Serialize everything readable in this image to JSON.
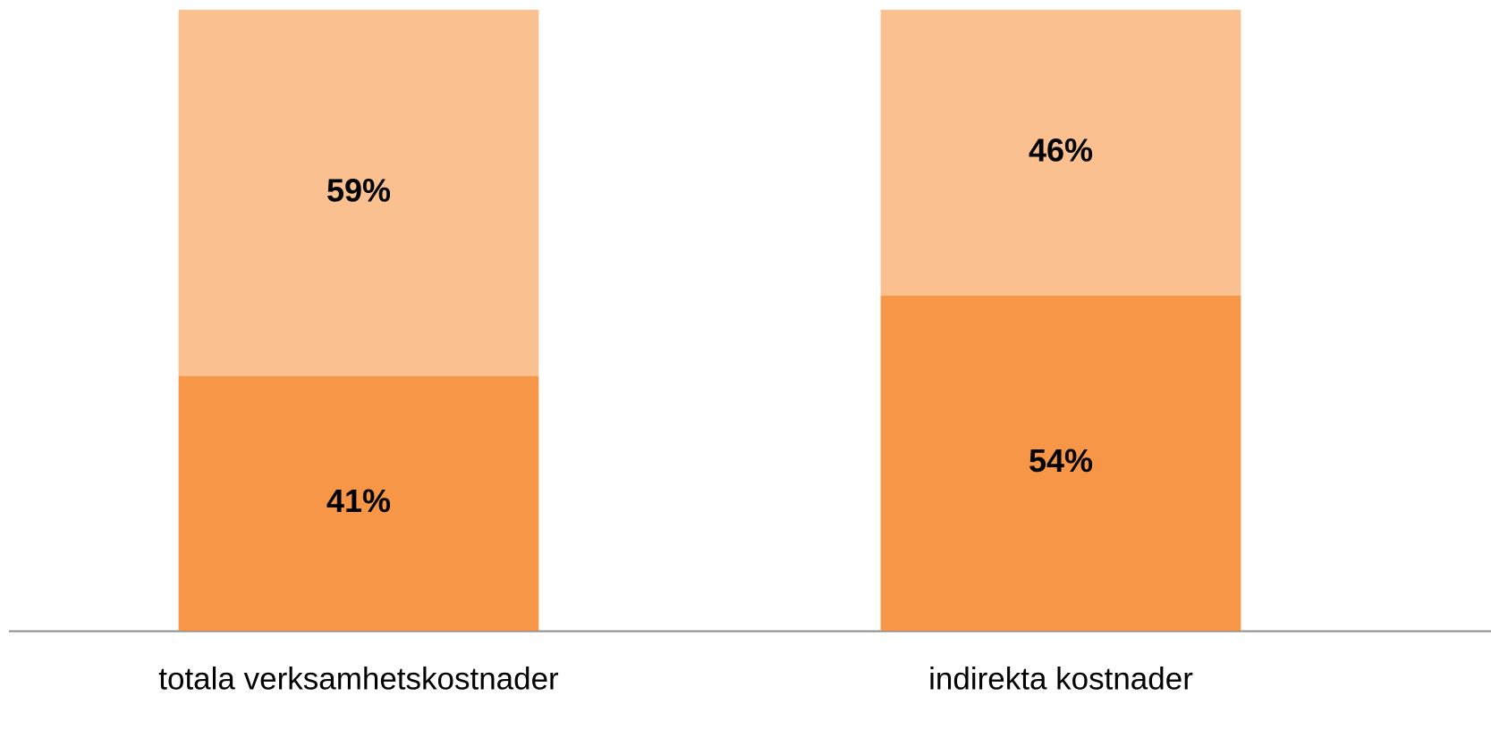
{
  "chart_data": {
    "type": "stacked_bar",
    "categories": [
      "totala verksamhetskostnader",
      "indirekta kostnader"
    ],
    "series": [
      {
        "color": "#f79646",
        "values": [
          41,
          54
        ],
        "value_labels": [
          "41%",
          "54%"
        ]
      },
      {
        "color": "#fac090",
        "values": [
          59,
          46
        ],
        "value_labels": [
          "59%",
          "46%"
        ]
      }
    ],
    "ylim": [
      0,
      100
    ]
  }
}
